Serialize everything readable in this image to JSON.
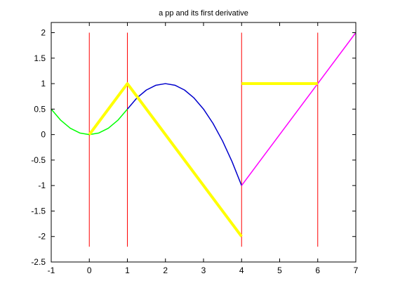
{
  "chart_data": {
    "type": "line",
    "title": "a pp and its first derivative",
    "xlabel": "",
    "ylabel": "",
    "xlim": [
      -1,
      7
    ],
    "ylim": [
      -2.5,
      2.2
    ],
    "grid": false,
    "x_ticks": [
      -1,
      0,
      1,
      2,
      3,
      4,
      5,
      6,
      7
    ],
    "x_tick_labels": [
      "-1",
      "0",
      "1",
      "2",
      "3",
      "4",
      "5",
      "6",
      "7"
    ],
    "y_ticks": [
      -2.5,
      -2,
      -1.5,
      -1,
      -0.5,
      0,
      0.5,
      1,
      1.5,
      2
    ],
    "y_tick_labels": [
      "-2.5",
      "-2",
      "-1.5",
      "-1",
      "-0.5",
      "0",
      "0.5",
      "1",
      "1.5",
      "2"
    ],
    "breaks": {
      "x": [
        0,
        1,
        4,
        6
      ],
      "y_range": [
        -2.2,
        2.0
      ],
      "color": "#ff0000"
    },
    "series": [
      {
        "color": "#00ff00",
        "x": [
          -1,
          -0.75,
          -0.5,
          -0.25,
          0,
          0.25,
          0.5,
          0.75,
          1
        ],
        "y": [
          0.5,
          0.2813,
          0.125,
          0.0313,
          0,
          0.0313,
          0.125,
          0.2813,
          0.5
        ]
      },
      {
        "color": "#0000cc",
        "x": [
          1,
          1.25,
          1.5,
          1.75,
          2,
          2.25,
          2.5,
          2.75,
          3,
          3.25,
          3.5,
          3.75,
          4
        ],
        "y": [
          0.5,
          0.7188,
          0.875,
          0.9688,
          1,
          0.9688,
          0.875,
          0.7188,
          0.5,
          0.2188,
          -0.125,
          -0.5313,
          -1
        ]
      },
      {
        "color": "#ff00ff",
        "x": [
          4,
          6,
          7
        ],
        "y": [
          -1,
          1,
          2
        ]
      },
      {
        "color": "#ffff00",
        "x": [
          0,
          1,
          4
        ],
        "y": [
          0,
          1,
          -2
        ],
        "linewidth": "thick"
      },
      {
        "color": "#ffff00",
        "x": [
          4,
          6
        ],
        "y": [
          1,
          1
        ],
        "linewidth": "thick"
      }
    ]
  }
}
